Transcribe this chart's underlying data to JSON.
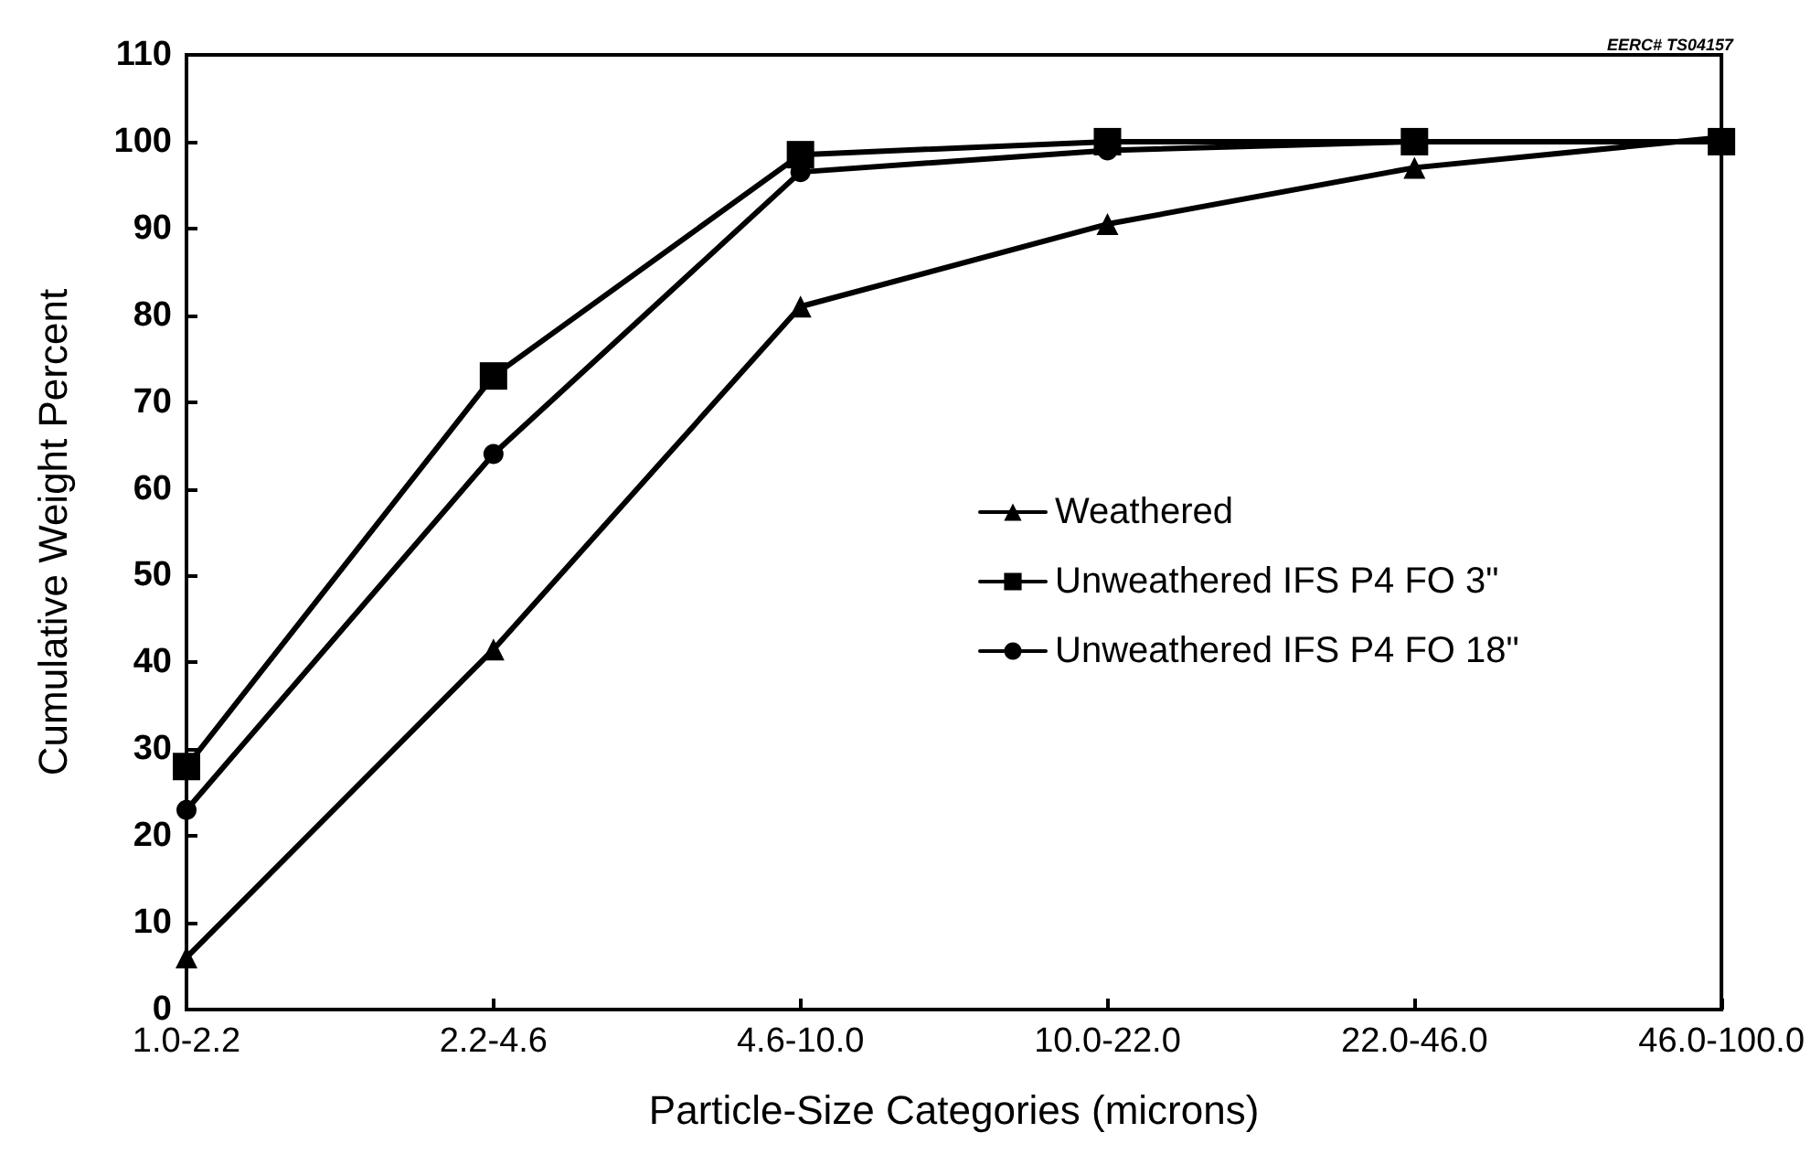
{
  "chart_data": {
    "type": "line",
    "xlabel": "Particle-Size Categories (microns)",
    "ylabel": "Cumulative Weight Percent",
    "annotations": [
      "EERC# TS04157"
    ],
    "categories": [
      "1.0-2.2",
      "2.2-4.6",
      "4.6-10.0",
      "10.0-22.0",
      "22.0-46.0",
      "46.0-100.0"
    ],
    "series": [
      {
        "name": "Weathered",
        "color": "#000000",
        "marker": "triangle",
        "values": [
          6,
          41.5,
          81,
          90.5,
          97,
          100.5
        ]
      },
      {
        "name": "Unweathered IFS P4 FO 3\"",
        "color": "#000000",
        "marker": "square",
        "values": [
          28,
          73,
          98.5,
          100,
          100,
          100
        ]
      },
      {
        "name": "Unweathered IFS P4 FO 18\"",
        "color": "#000000",
        "marker": "circle",
        "values": [
          23,
          64,
          96.5,
          99,
          100,
          100
        ]
      }
    ],
    "ylim": [
      0,
      110
    ],
    "yticks": [
      0,
      10,
      20,
      30,
      40,
      50,
      60,
      70,
      80,
      90,
      100,
      110
    ],
    "grid": false,
    "legend": "right",
    "line_style": "solid"
  }
}
